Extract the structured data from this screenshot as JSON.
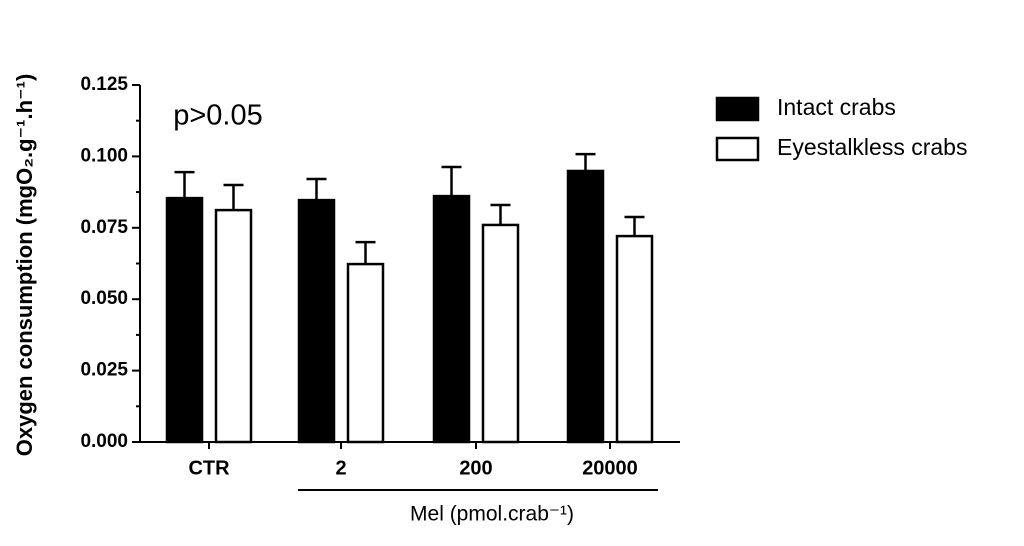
{
  "chart_data": {
    "type": "bar",
    "annotation": "p>0.05",
    "y_label": "Oxygen consumption (mgO₂.g⁻¹.h⁻¹)",
    "x_label": "Mel (pmol.crab⁻¹)",
    "categories": [
      "CTR",
      "2",
      "200",
      "20000"
    ],
    "series": [
      {
        "name": "Intact crabs",
        "color": "#000000",
        "values": [
          0.0854,
          0.0847,
          0.0861,
          0.0949
        ],
        "errors": [
          0.0091,
          0.0074,
          0.0102,
          0.0059
        ]
      },
      {
        "name": "Eyestalkless crabs",
        "color": "#ffffff",
        "values": [
          0.0812,
          0.0623,
          0.076,
          0.0721
        ],
        "errors": [
          0.0088,
          0.0077,
          0.007,
          0.0067
        ]
      }
    ],
    "ylim": [
      0,
      0.125
    ],
    "yticks": [
      {
        "value": 0,
        "label": "0.000"
      },
      {
        "value": 0.025,
        "label": "0.025"
      },
      {
        "value": 0.05,
        "label": "0.050"
      },
      {
        "value": 0.075,
        "label": "0.075"
      },
      {
        "value": 0.1,
        "label": "0.100"
      },
      {
        "value": 0.125,
        "label": "0.125"
      }
    ],
    "grid": false,
    "legend": "right"
  }
}
